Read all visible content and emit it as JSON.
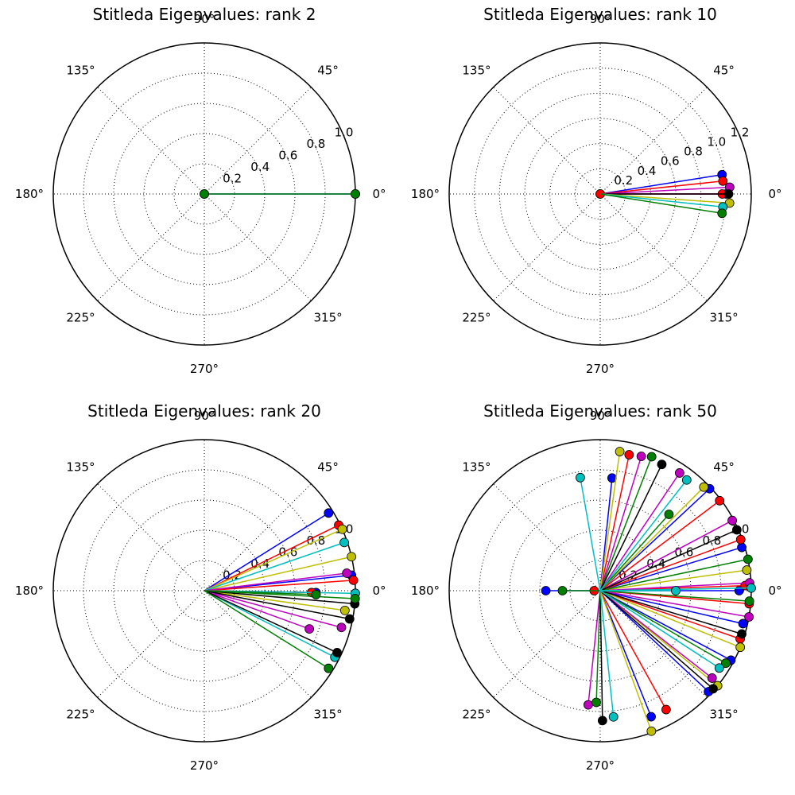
{
  "chart_data": [
    {
      "type": "scatter",
      "subtype": "polar",
      "title": "Stitleda Eigenvalues: rank 2",
      "angle_ticks": [
        "0°",
        "45°",
        "90°",
        "135°",
        "180°",
        "225°",
        "270°",
        "315°"
      ],
      "radial_ticks": [
        "0.2",
        "0.4",
        "0.6",
        "0.8",
        "1.0"
      ],
      "rlim": [
        0,
        1.0
      ],
      "grid": true,
      "series": [
        {
          "color": "#0000ff",
          "points": [
            {
              "theta": 0,
              "r": 1.0
            },
            {
              "theta": 0,
              "r": 0.0
            }
          ]
        },
        {
          "color": "#008000",
          "points": [
            {
              "theta": 0,
              "r": 1.0
            },
            {
              "theta": 0,
              "r": 0.0
            }
          ]
        }
      ]
    },
    {
      "type": "scatter",
      "subtype": "polar",
      "title": "Stitleda Eigenvalues: rank 10",
      "angle_ticks": [
        "0°",
        "45°",
        "90°",
        "135°",
        "180°",
        "225°",
        "270°",
        "315°"
      ],
      "radial_ticks": [
        "0.2",
        "0.4",
        "0.6",
        "0.8",
        "1.0",
        "1.2"
      ],
      "rlim": [
        0,
        1.2
      ],
      "grid": true,
      "series": [
        {
          "color": "#0000ff",
          "points": [
            {
              "theta": 9,
              "r": 0.98
            },
            {
              "theta": 0,
              "r": 1.0
            },
            {
              "theta": 0,
              "r": 0.0
            }
          ]
        },
        {
          "color": "#ff0000",
          "points": [
            {
              "theta": 6,
              "r": 0.98
            },
            {
              "theta": 0,
              "r": 0.97
            },
            {
              "theta": 0,
              "r": 0.0
            }
          ]
        },
        {
          "color": "#bf00bf",
          "points": [
            {
              "theta": 3,
              "r": 1.03
            }
          ]
        },
        {
          "color": "#000000",
          "points": [
            {
              "theta": 0,
              "r": 1.02
            }
          ]
        },
        {
          "color": "#bfbf00",
          "points": [
            {
              "theta": -4,
              "r": 1.03
            }
          ]
        },
        {
          "color": "#00bfbf",
          "points": [
            {
              "theta": -6,
              "r": 0.98
            }
          ]
        },
        {
          "color": "#008000",
          "points": [
            {
              "theta": -9,
              "r": 0.98
            }
          ]
        }
      ]
    },
    {
      "type": "scatter",
      "subtype": "polar",
      "title": "Stitleda Eigenvalues: rank 20",
      "angle_ticks": [
        "0°",
        "45°",
        "90°",
        "135°",
        "180°",
        "225°",
        "270°",
        "315°"
      ],
      "radial_ticks": [
        "0.2",
        "0.4",
        "0.6",
        "0.8",
        "1.0"
      ],
      "rlim": [
        0,
        1.0
      ],
      "grid": true,
      "series": [
        {
          "color": "#0000ff",
          "points": [
            {
              "theta": 32,
              "r": 0.97
            },
            {
              "theta": 6,
              "r": 0.98
            },
            {
              "theta": -1,
              "r": 0.74
            }
          ]
        },
        {
          "color": "#ff0000",
          "points": [
            {
              "theta": 26,
              "r": 0.99
            },
            {
              "theta": 4,
              "r": 0.99
            },
            {
              "theta": -1,
              "r": 0.71
            }
          ]
        },
        {
          "color": "#bfbf00",
          "points": [
            {
              "theta": 24,
              "r": 1.0
            },
            {
              "theta": 13,
              "r": 1.0
            },
            {
              "theta": -8,
              "r": 0.94
            }
          ]
        },
        {
          "color": "#00bfbf",
          "points": [
            {
              "theta": 19,
              "r": 0.98
            },
            {
              "theta": -1,
              "r": 1.0
            },
            {
              "theta": -27,
              "r": 0.97
            }
          ]
        },
        {
          "color": "#bf00bf",
          "points": [
            {
              "theta": 7,
              "r": 0.95
            },
            {
              "theta": -15,
              "r": 0.94
            },
            {
              "theta": -20,
              "r": 0.74
            }
          ]
        },
        {
          "color": "#000000",
          "points": [
            {
              "theta": -5,
              "r": 1.0
            },
            {
              "theta": -11,
              "r": 0.98
            },
            {
              "theta": -25,
              "r": 0.97
            }
          ]
        },
        {
          "color": "#008000",
          "points": [
            {
              "theta": -3,
              "r": 1.0
            },
            {
              "theta": -2,
              "r": 0.74
            },
            {
              "theta": -32,
              "r": 0.97
            }
          ]
        }
      ]
    },
    {
      "type": "scatter",
      "subtype": "polar",
      "title": "Stitleda Eigenvalues: rank 50",
      "angle_ticks": [
        "0°",
        "45°",
        "90°",
        "135°",
        "180°",
        "225°",
        "270°",
        "315°"
      ],
      "radial_ticks": [
        "0.2",
        "0.4",
        "0.6",
        "0.8",
        "1.0"
      ],
      "rlim": [
        0,
        1.0
      ],
      "grid": true,
      "series": [
        {
          "color": "#0000ff",
          "points": [
            {
              "theta": 84,
              "r": 0.75
            },
            {
              "theta": 43,
              "r": 0.99
            },
            {
              "theta": 17,
              "r": 0.98
            },
            {
              "theta": 0,
              "r": 0.92
            },
            {
              "theta": -13,
              "r": 0.97
            },
            {
              "theta": -28,
              "r": 0.98
            },
            {
              "theta": -43,
              "r": 0.98
            },
            {
              "theta": -68,
              "r": 0.9
            },
            {
              "theta": 180,
              "r": 0.36
            }
          ]
        },
        {
          "color": "#ff0000",
          "points": [
            {
              "theta": 78,
              "r": 0.92
            },
            {
              "theta": 37,
              "r": 0.99
            },
            {
              "theta": 20,
              "r": 0.99
            },
            {
              "theta": 2,
              "r": 0.96
            },
            {
              "theta": -5,
              "r": 0.99
            },
            {
              "theta": -19,
              "r": 0.98
            },
            {
              "theta": -61,
              "r": 0.9
            },
            {
              "theta": 180,
              "r": 0.04
            }
          ]
        },
        {
          "color": "#bfbf00",
          "points": [
            {
              "theta": 82,
              "r": 0.93
            },
            {
              "theta": 45,
              "r": 0.97
            },
            {
              "theta": 8,
              "r": 0.98
            },
            {
              "theta": -22,
              "r": 1.0
            },
            {
              "theta": -39,
              "r": 1.0
            },
            {
              "theta": -70,
              "r": 0.99
            }
          ]
        },
        {
          "color": "#bf00bf",
          "points": [
            {
              "theta": 73,
              "r": 0.93
            },
            {
              "theta": 56,
              "r": 0.94
            },
            {
              "theta": 28,
              "r": 0.99
            },
            {
              "theta": 3,
              "r": 0.99
            },
            {
              "theta": -10,
              "r": 1.0
            },
            {
              "theta": -38,
              "r": 0.94
            },
            {
              "theta": -96,
              "r": 0.76
            }
          ]
        },
        {
          "color": "#008000",
          "points": [
            {
              "theta": 69,
              "r": 0.95
            },
            {
              "theta": 48,
              "r": 0.68
            },
            {
              "theta": 12,
              "r": 1.0
            },
            {
              "theta": -4,
              "r": 0.99
            },
            {
              "theta": -30,
              "r": 0.96
            },
            {
              "theta": -92,
              "r": 0.74
            },
            {
              "theta": 180,
              "r": 0.25
            }
          ]
        },
        {
          "color": "#000000",
          "points": [
            {
              "theta": 64,
              "r": 0.93
            },
            {
              "theta": 24,
              "r": 0.99
            },
            {
              "theta": -17,
              "r": 0.98
            },
            {
              "theta": -41,
              "r": 0.99
            },
            {
              "theta": -89,
              "r": 0.86
            }
          ]
        },
        {
          "color": "#00bfbf",
          "points": [
            {
              "theta": 100,
              "r": 0.76
            },
            {
              "theta": 52,
              "r": 0.93
            },
            {
              "theta": 0,
              "r": 0.5
            },
            {
              "theta": 1,
              "r": 1.0
            },
            {
              "theta": -33,
              "r": 0.94
            },
            {
              "theta": -84,
              "r": 0.84
            }
          ]
        }
      ]
    }
  ]
}
